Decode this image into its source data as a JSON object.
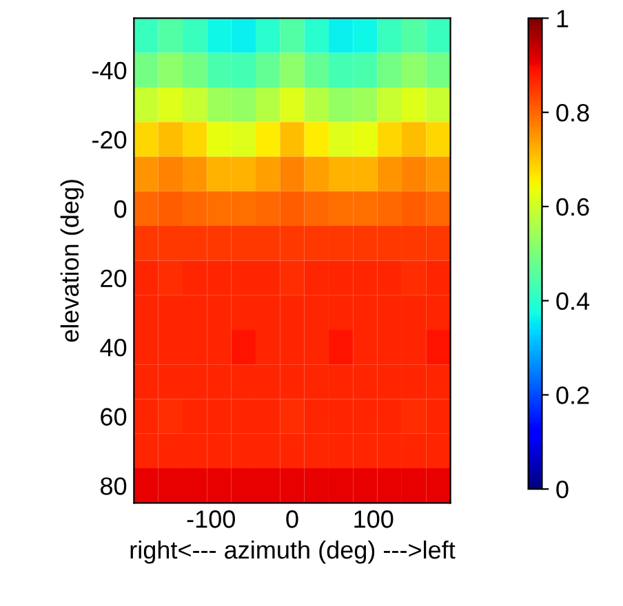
{
  "chart_data": {
    "type": "heatmap",
    "xlabel": "right<--- azimuth (deg) --->left",
    "ylabel": "elevation (deg)",
    "x": [
      -180,
      -150,
      -120,
      -90,
      -60,
      -30,
      0,
      30,
      60,
      90,
      120,
      150,
      180
    ],
    "y": [
      -50,
      -40,
      -30,
      -20,
      -10,
      0,
      10,
      20,
      30,
      40,
      50,
      60,
      70,
      80
    ],
    "xlim": [
      -195,
      195
    ],
    "ylim": [
      85,
      -55
    ],
    "xticks": [
      -100,
      0,
      100
    ],
    "yticks": [
      -40,
      -20,
      0,
      20,
      40,
      60,
      80
    ],
    "clim": [
      0,
      1
    ],
    "cticks": [
      0,
      0.2,
      0.4,
      0.6,
      0.8,
      1
    ],
    "grid": false,
    "cells": [
      [
        0.42,
        0.45,
        0.42,
        0.37,
        0.36,
        0.4,
        0.45,
        0.4,
        0.36,
        0.37,
        0.42,
        0.45,
        0.42
      ],
      [
        0.49,
        0.52,
        0.49,
        0.44,
        0.43,
        0.47,
        0.52,
        0.47,
        0.43,
        0.44,
        0.49,
        0.52,
        0.49
      ],
      [
        0.59,
        0.62,
        0.59,
        0.54,
        0.53,
        0.57,
        0.62,
        0.57,
        0.53,
        0.54,
        0.59,
        0.62,
        0.59
      ],
      [
        0.68,
        0.71,
        0.68,
        0.63,
        0.62,
        0.66,
        0.71,
        0.66,
        0.62,
        0.63,
        0.68,
        0.71,
        0.68
      ],
      [
        0.75,
        0.77,
        0.75,
        0.72,
        0.72,
        0.74,
        0.77,
        0.74,
        0.72,
        0.72,
        0.75,
        0.77,
        0.75
      ],
      [
        0.8,
        0.81,
        0.8,
        0.79,
        0.79,
        0.8,
        0.81,
        0.8,
        0.79,
        0.79,
        0.8,
        0.81,
        0.8
      ],
      [
        0.85,
        0.85,
        0.85,
        0.85,
        0.85,
        0.85,
        0.85,
        0.85,
        0.85,
        0.85,
        0.85,
        0.85,
        0.85
      ],
      [
        0.87,
        0.86,
        0.87,
        0.87,
        0.87,
        0.87,
        0.86,
        0.87,
        0.87,
        0.87,
        0.87,
        0.86,
        0.87
      ],
      [
        0.87,
        0.87,
        0.87,
        0.87,
        0.87,
        0.87,
        0.87,
        0.87,
        0.87,
        0.87,
        0.87,
        0.87,
        0.87
      ],
      [
        0.87,
        0.87,
        0.87,
        0.87,
        0.89,
        0.87,
        0.87,
        0.87,
        0.89,
        0.87,
        0.87,
        0.87,
        0.89
      ],
      [
        0.87,
        0.87,
        0.87,
        0.87,
        0.87,
        0.87,
        0.87,
        0.87,
        0.87,
        0.87,
        0.87,
        0.87,
        0.87
      ],
      [
        0.87,
        0.86,
        0.87,
        0.87,
        0.87,
        0.87,
        0.86,
        0.87,
        0.87,
        0.87,
        0.87,
        0.86,
        0.87
      ],
      [
        0.87,
        0.87,
        0.87,
        0.87,
        0.87,
        0.87,
        0.87,
        0.87,
        0.87,
        0.87,
        0.87,
        0.87,
        0.87
      ],
      [
        0.91,
        0.91,
        0.91,
        0.91,
        0.91,
        0.91,
        0.91,
        0.91,
        0.91,
        0.91,
        0.91,
        0.91,
        0.91
      ]
    ]
  }
}
